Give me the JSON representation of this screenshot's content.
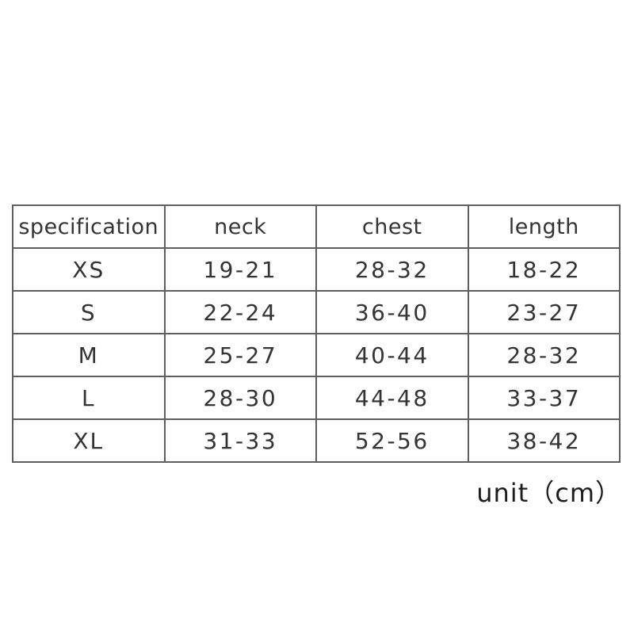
{
  "chart_data": {
    "type": "table",
    "title": "",
    "columns": [
      "specification",
      "neck",
      "chest",
      "length"
    ],
    "rows": [
      {
        "specification": "XS",
        "neck": "19-21",
        "chest": "28-32",
        "length": "18-22"
      },
      {
        "specification": "S",
        "neck": "22-24",
        "chest": "36-40",
        "length": "23-27"
      },
      {
        "specification": "M",
        "neck": "25-27",
        "chest": "40-44",
        "length": "28-32"
      },
      {
        "specification": "L",
        "neck": "28-30",
        "chest": "44-48",
        "length": "33-37"
      },
      {
        "specification": "XL",
        "neck": "31-33",
        "chest": "52-56",
        "length": "38-42"
      }
    ],
    "caption": "unit（cm）",
    "layout": {
      "grid": "on",
      "border_color": "#5f5f5f",
      "text_color": "#343434",
      "background": "#ffffff"
    }
  },
  "table": {
    "headers": {
      "specification": "specification",
      "neck": "neck",
      "chest": "chest",
      "length": "length"
    },
    "rows": [
      {
        "size": "XS",
        "neck": "19-21",
        "chest": "28-32",
        "length": "18-22"
      },
      {
        "size": "S",
        "neck": "22-24",
        "chest": "36-40",
        "length": "23-27"
      },
      {
        "size": "M",
        "neck": "25-27",
        "chest": "40-44",
        "length": "28-32"
      },
      {
        "size": "L",
        "neck": "28-30",
        "chest": "44-48",
        "length": "33-37"
      },
      {
        "size": "XL",
        "neck": "31-33",
        "chest": "52-56",
        "length": "38-42"
      }
    ]
  },
  "footer": {
    "unit_label": "unit（cm）"
  }
}
